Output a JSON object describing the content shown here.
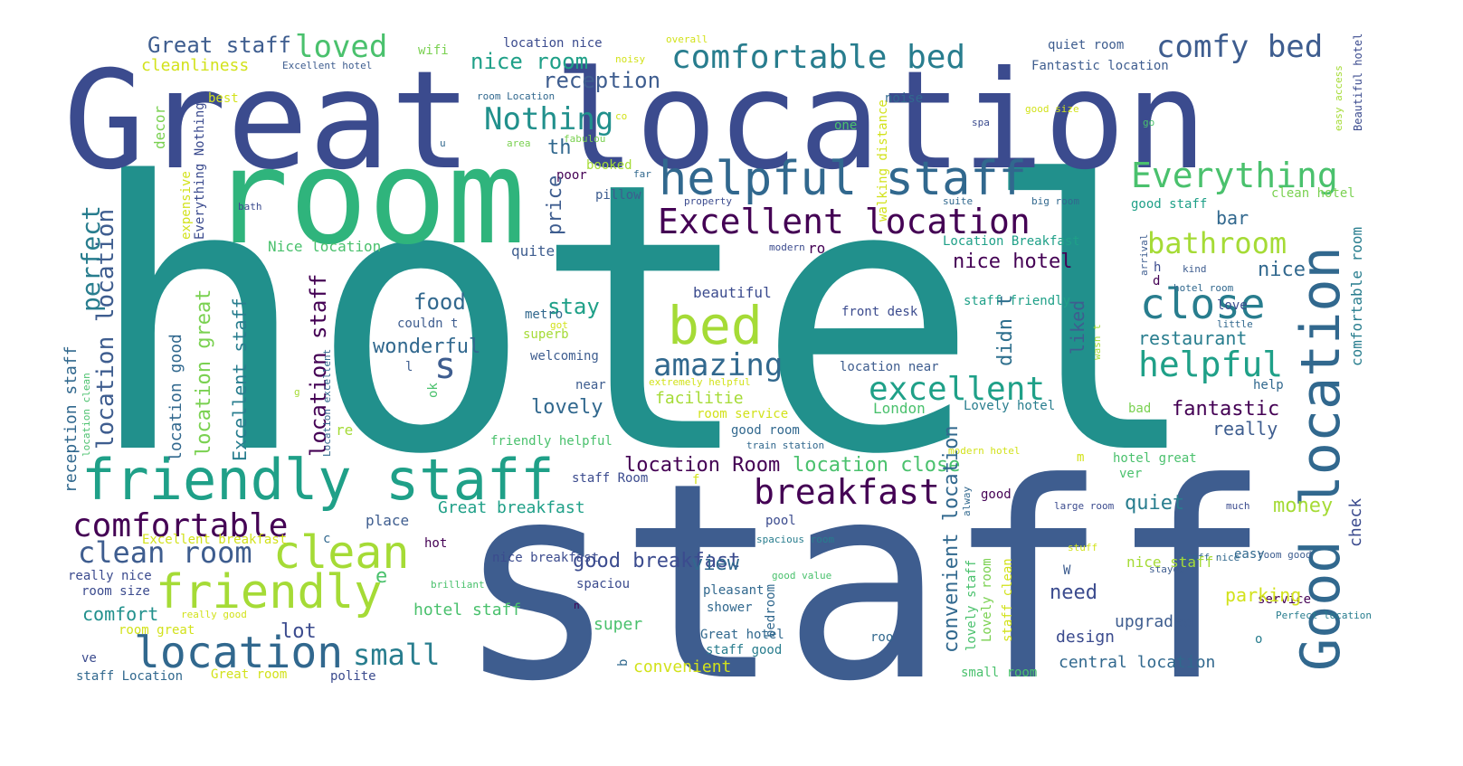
{
  "colors": {
    "background": "#ffffff",
    "dark_purple": "#440154",
    "indigo": "#3b4b8e",
    "slate_blue": "#3e5d8f",
    "blue": "#31688e",
    "steel": "#2f708e",
    "teal_blue": "#287d8e",
    "teal": "#21908c",
    "green_teal": "#1fa088",
    "sea_green": "#2fb47c",
    "green": "#4ac16d",
    "lime": "#7ad151",
    "yellow_green": "#a5db36",
    "yellow": "#d2e21b"
  },
  "words": [
    {
      "text": "hotel",
      "c": "teal"
    },
    {
      "text": "staff",
      "c": "slate_blue"
    },
    {
      "text": "Great location",
      "c": "indigo"
    },
    {
      "text": "room",
      "c": "sea_green"
    },
    {
      "text": "friendly staff",
      "c": "green_teal"
    },
    {
      "text": "Good location",
      "c": "blue"
    },
    {
      "text": "helpful staff",
      "c": "blue"
    },
    {
      "text": "location",
      "c": "blue"
    },
    {
      "text": "friendly",
      "c": "yellow_green"
    },
    {
      "text": "clean",
      "c": "yellow_green"
    },
    {
      "text": "bed",
      "c": "yellow_green"
    },
    {
      "text": "comfortable bed",
      "c": "teal_blue"
    },
    {
      "text": "Excellent location",
      "c": "dark_purple"
    },
    {
      "text": "close",
      "c": "teal_blue"
    },
    {
      "text": "comfy bed",
      "c": "slate_blue"
    },
    {
      "text": "Everything",
      "c": "green"
    },
    {
      "text": "excellent",
      "c": "green_teal"
    },
    {
      "text": "helpful",
      "c": "green_teal"
    },
    {
      "text": "breakfast",
      "c": "dark_purple"
    },
    {
      "text": "comfortable",
      "c": "dark_purple"
    },
    {
      "text": "clean room",
      "c": "slate_blue"
    },
    {
      "text": "amazing",
      "c": "blue"
    },
    {
      "text": "Nothing",
      "c": "teal"
    },
    {
      "text": "bathroom",
      "c": "yellow_green"
    },
    {
      "text": "loved",
      "c": "green"
    },
    {
      "text": "small",
      "c": "teal_blue"
    },
    {
      "text": "location location",
      "c": "slate_blue"
    },
    {
      "text": "perfect",
      "c": "teal_blue"
    },
    {
      "text": "location staff",
      "c": "dark_purple"
    },
    {
      "text": "location great",
      "c": "lime"
    },
    {
      "text": "Great staff",
      "c": "slate_blue"
    },
    {
      "text": "reception",
      "c": "slate_blue"
    },
    {
      "text": "nice room",
      "c": "green_teal"
    },
    {
      "text": "cleanliness",
      "c": "yellow"
    },
    {
      "text": "wifi",
      "c": "lime"
    },
    {
      "text": "location nice",
      "c": "indigo"
    },
    {
      "text": "Excellent hotel",
      "c": "slate_blue"
    },
    {
      "text": "overall",
      "c": "yellow"
    },
    {
      "text": "noisy",
      "c": "yellow"
    },
    {
      "text": "quiet room",
      "c": "slate_blue"
    },
    {
      "text": "Fantastic location",
      "c": "slate_blue"
    },
    {
      "text": "Beautiful hotel",
      "c": "indigo"
    },
    {
      "text": "best",
      "c": "yellow"
    },
    {
      "text": "room Location",
      "c": "blue"
    },
    {
      "text": "t",
      "c": "indigo"
    },
    {
      "text": "noise",
      "c": "blue"
    },
    {
      "text": "good size",
      "c": "yellow"
    },
    {
      "text": "th",
      "c": "blue"
    },
    {
      "text": "co",
      "c": "yellow"
    },
    {
      "text": "decor",
      "c": "lime"
    },
    {
      "text": "fabulou",
      "c": "lime"
    },
    {
      "text": "u",
      "c": "blue"
    },
    {
      "text": "area",
      "c": "lime"
    },
    {
      "text": "one",
      "c": "green"
    },
    {
      "text": "spa",
      "c": "indigo"
    },
    {
      "text": "go",
      "c": "green"
    },
    {
      "text": "easy access",
      "c": "yellow_green"
    },
    {
      "text": "Everything Nothing",
      "c": "indigo"
    },
    {
      "text": "poor",
      "c": "dark_purple"
    },
    {
      "text": "booked",
      "c": "yellow_green"
    },
    {
      "text": "far",
      "c": "blue"
    },
    {
      "text": "pillow",
      "c": "slate_blue"
    },
    {
      "text": "property",
      "c": "indigo"
    },
    {
      "text": "suite",
      "c": "blue"
    },
    {
      "text": "big room",
      "c": "blue"
    },
    {
      "text": "good staff",
      "c": "green_teal"
    },
    {
      "text": "clean hotel",
      "c": "lime"
    },
    {
      "text": "bath",
      "c": "indigo"
    },
    {
      "text": "expensive",
      "c": "yellow"
    },
    {
      "text": "walking distance",
      "c": "yellow"
    },
    {
      "text": "price",
      "c": "slate_blue"
    },
    {
      "text": "bar",
      "c": "blue"
    },
    {
      "text": "Location Breakfast",
      "c": "green_teal"
    },
    {
      "text": "arrival",
      "c": "slate_blue"
    },
    {
      "text": "h",
      "c": "indigo"
    },
    {
      "text": "kind",
      "c": "slate_blue"
    },
    {
      "text": "d",
      "c": "dark_purple"
    },
    {
      "text": "Nice location",
      "c": "green"
    },
    {
      "text": "quite",
      "c": "slate_blue"
    },
    {
      "text": "modern",
      "c": "indigo"
    },
    {
      "text": "ro",
      "c": "dark_purple"
    },
    {
      "text": "nice hotel",
      "c": "dark_purple"
    },
    {
      "text": "staff friendly",
      "c": "green_teal"
    },
    {
      "text": "hotel room",
      "c": "blue"
    },
    {
      "text": "nice",
      "c": "blue"
    },
    {
      "text": "love",
      "c": "indigo"
    },
    {
      "text": "didn t",
      "c": "steel"
    },
    {
      "text": "comfortable room",
      "c": "teal_blue"
    },
    {
      "text": "food",
      "c": "blue"
    },
    {
      "text": "stay",
      "c": "green_teal"
    },
    {
      "text": "beautiful",
      "c": "indigo"
    },
    {
      "text": "metro",
      "c": "blue"
    },
    {
      "text": "wasn t",
      "c": "yellow_green"
    },
    {
      "text": "front desk",
      "c": "indigo"
    },
    {
      "text": "little",
      "c": "blue"
    },
    {
      "text": "got",
      "c": "yellow"
    },
    {
      "text": "couldn t",
      "c": "slate_blue"
    },
    {
      "text": "superb",
      "c": "yellow_green"
    },
    {
      "text": "wonderful",
      "c": "blue"
    },
    {
      "text": "restaurant",
      "c": "teal_blue"
    },
    {
      "text": "s",
      "c": "slate_blue"
    },
    {
      "text": "welcoming",
      "c": "slate_blue"
    },
    {
      "text": "liked",
      "c": "slate_blue"
    },
    {
      "text": "Excellent staff",
      "c": "teal_blue"
    },
    {
      "text": "location good",
      "c": "blue"
    },
    {
      "text": "reception staff",
      "c": "blue"
    },
    {
      "text": "location clean",
      "c": "green"
    },
    {
      "text": "Location excellent",
      "c": "blue"
    },
    {
      "text": "l",
      "c": "slate_blue"
    },
    {
      "text": "location near",
      "c": "slate_blue"
    },
    {
      "text": "ok",
      "c": "green"
    },
    {
      "text": "extremely helpful",
      "c": "yellow"
    },
    {
      "text": "near",
      "c": "slate_blue"
    },
    {
      "text": "help",
      "c": "blue"
    },
    {
      "text": "facilitie",
      "c": "yellow_green"
    },
    {
      "text": "g",
      "c": "yellow_green"
    },
    {
      "text": "lovely",
      "c": "blue"
    },
    {
      "text": "London",
      "c": "green"
    },
    {
      "text": "Lovely hotel",
      "c": "teal_blue"
    },
    {
      "text": "bad",
      "c": "lime"
    },
    {
      "text": "fantastic",
      "c": "dark_purple"
    },
    {
      "text": "room service",
      "c": "yellow"
    },
    {
      "text": "good room",
      "c": "blue"
    },
    {
      "text": "really",
      "c": "slate_blue"
    },
    {
      "text": "re",
      "c": "yellow_green"
    },
    {
      "text": "friendly helpful",
      "c": "green"
    },
    {
      "text": "train station",
      "c": "blue"
    },
    {
      "text": "modern hotel",
      "c": "yellow"
    },
    {
      "text": "hotel great",
      "c": "green"
    },
    {
      "text": "location close",
      "c": "green"
    },
    {
      "text": "location Room",
      "c": "dark_purple"
    },
    {
      "text": "staff Room",
      "c": "indigo"
    },
    {
      "text": "f",
      "c": "yellow"
    },
    {
      "text": "ver",
      "c": "green"
    },
    {
      "text": "m",
      "c": "yellow"
    },
    {
      "text": "good",
      "c": "dark_purple"
    },
    {
      "text": "quiet",
      "c": "teal_blue"
    },
    {
      "text": "alway",
      "c": "blue"
    },
    {
      "text": "large room",
      "c": "indigo"
    },
    {
      "text": "much",
      "c": "indigo"
    },
    {
      "text": "check",
      "c": "indigo"
    },
    {
      "text": "money",
      "c": "yellow_green"
    },
    {
      "text": "Great breakfast",
      "c": "green_teal"
    },
    {
      "text": "place",
      "c": "slate_blue"
    },
    {
      "text": "Excellent breakfast",
      "c": "yellow"
    },
    {
      "text": "hot",
      "c": "dark_purple"
    },
    {
      "text": "c",
      "c": "blue"
    },
    {
      "text": "pool",
      "c": "indigo"
    },
    {
      "text": "spacious room",
      "c": "teal_blue"
    },
    {
      "text": "convenient location",
      "c": "blue"
    },
    {
      "text": "lovely staff",
      "c": "green"
    },
    {
      "text": "Lovely room",
      "c": "lime"
    },
    {
      "text": "staff clean",
      "c": "yellow"
    },
    {
      "text": "stuff",
      "c": "yellow"
    },
    {
      "text": "staff nice",
      "c": "blue"
    },
    {
      "text": "room good",
      "c": "slate_blue"
    },
    {
      "text": "easy",
      "c": "blue"
    },
    {
      "text": "stayed",
      "c": "slate_blue"
    },
    {
      "text": "good breakfast",
      "c": "indigo"
    },
    {
      "text": "view",
      "c": "blue"
    },
    {
      "text": "e",
      "c": "green"
    },
    {
      "text": "brilliant",
      "c": "green"
    },
    {
      "text": "nice breakfast",
      "c": "indigo"
    },
    {
      "text": "good value",
      "c": "green"
    },
    {
      "text": "really nice",
      "c": "indigo"
    },
    {
      "text": "room size",
      "c": "indigo"
    },
    {
      "text": "spaciou",
      "c": "indigo"
    },
    {
      "text": "W",
      "c": "slate_blue"
    },
    {
      "text": "nice staff",
      "c": "yellow_green"
    },
    {
      "text": "need",
      "c": "indigo"
    },
    {
      "text": "service",
      "c": "dark_purple"
    },
    {
      "text": "comfort",
      "c": "teal"
    },
    {
      "text": "hotel staff",
      "c": "green"
    },
    {
      "text": "pleasant",
      "c": "blue"
    },
    {
      "text": "shower",
      "c": "blue"
    },
    {
      "text": "parking",
      "c": "yellow"
    },
    {
      "text": "room great",
      "c": "yellow"
    },
    {
      "text": "really good",
      "c": "yellow"
    },
    {
      "text": "n",
      "c": "dark_purple"
    },
    {
      "text": "upgraded",
      "c": "slate_blue"
    },
    {
      "text": "Perfect location",
      "c": "teal_blue"
    },
    {
      "text": "lot",
      "c": "indigo"
    },
    {
      "text": "super",
      "c": "green"
    },
    {
      "text": "bedroom",
      "c": "blue"
    },
    {
      "text": "Great hotel",
      "c": "blue"
    },
    {
      "text": "design",
      "c": "indigo"
    },
    {
      "text": "o",
      "c": "teal_blue"
    },
    {
      "text": "roo",
      "c": "blue"
    },
    {
      "text": "ve",
      "c": "indigo"
    },
    {
      "text": "b",
      "c": "blue"
    },
    {
      "text": "convenient",
      "c": "yellow"
    },
    {
      "text": "staff good",
      "c": "teal_blue"
    },
    {
      "text": "central location",
      "c": "blue"
    },
    {
      "text": "staff Location",
      "c": "blue"
    },
    {
      "text": "Great room",
      "c": "yellow"
    },
    {
      "text": "polite",
      "c": "indigo"
    },
    {
      "text": "small room",
      "c": "green"
    }
  ]
}
